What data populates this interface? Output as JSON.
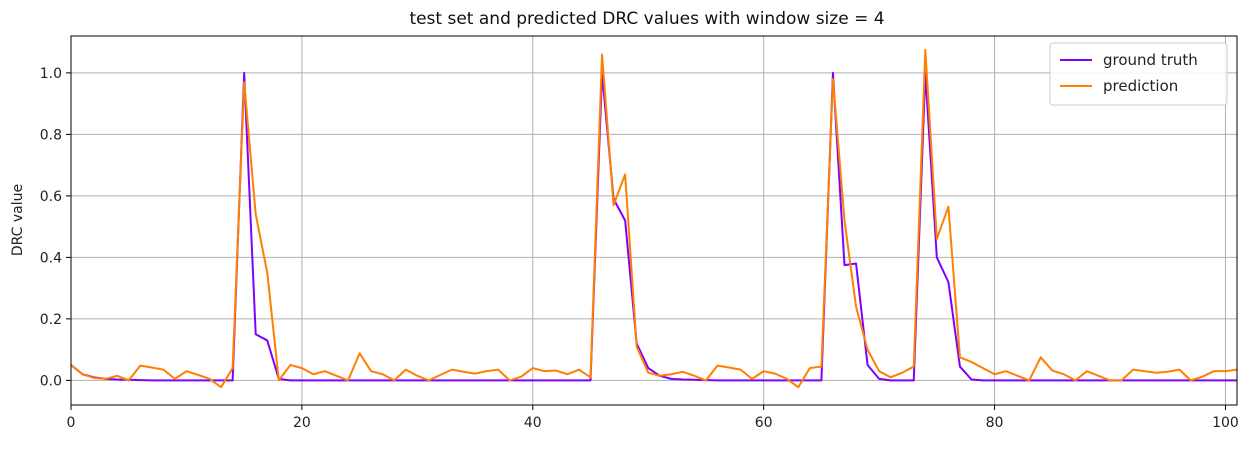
{
  "chart_data": {
    "type": "line",
    "title": "test set and predicted DRC values with window size = 4",
    "xlabel": "",
    "ylabel": "DRC value",
    "xlim": [
      0,
      101
    ],
    "ylim": [
      -0.08,
      1.12
    ],
    "xticks": [
      0,
      20,
      40,
      60,
      80,
      100
    ],
    "yticks": [
      0.0,
      0.2,
      0.4,
      0.6,
      0.8,
      1.0
    ],
    "xtick_labels": [
      "0",
      "20",
      "40",
      "60",
      "80",
      "100"
    ],
    "ytick_labels": [
      "0.0",
      "0.2",
      "0.4",
      "0.6",
      "0.8",
      "1.0"
    ],
    "grid": true,
    "legend_position": "top-right",
    "series": [
      {
        "name": "ground truth",
        "color": "#8000ff",
        "x": [
          0,
          1,
          2,
          3,
          4,
          5,
          6,
          7,
          8,
          9,
          10,
          11,
          12,
          13,
          14,
          15,
          16,
          17,
          18,
          19,
          20,
          21,
          22,
          23,
          24,
          25,
          26,
          27,
          28,
          29,
          30,
          31,
          32,
          33,
          34,
          35,
          36,
          37,
          38,
          39,
          40,
          41,
          42,
          43,
          44,
          45,
          46,
          47,
          48,
          49,
          50,
          51,
          52,
          53,
          54,
          55,
          56,
          57,
          58,
          59,
          60,
          61,
          62,
          63,
          64,
          65,
          66,
          67,
          68,
          69,
          70,
          71,
          72,
          73,
          74,
          75,
          76,
          77,
          78,
          79,
          80,
          81,
          82,
          83,
          84,
          85,
          86,
          87,
          88,
          89,
          90,
          91,
          92,
          93,
          94,
          95,
          96,
          97,
          98,
          99,
          100,
          101
        ],
        "values": [
          0.05,
          0.02,
          0.01,
          0.005,
          0.003,
          0.002,
          0.001,
          0,
          0,
          0,
          0,
          0,
          0,
          0,
          0,
          1.0,
          0.15,
          0.13,
          0.005,
          0,
          0,
          0,
          0,
          0,
          0,
          0,
          0,
          0,
          0,
          0,
          0,
          0,
          0,
          0,
          0,
          0,
          0,
          0,
          0,
          0,
          0,
          0,
          0,
          0,
          0,
          0,
          1.0,
          0.59,
          0.52,
          0.12,
          0.04,
          0.015,
          0.005,
          0.003,
          0.002,
          0.001,
          0,
          0,
          0,
          0,
          0,
          0,
          0,
          0,
          0,
          0,
          1.0,
          0.375,
          0.38,
          0.05,
          0.005,
          0,
          0,
          0,
          1.0,
          0.4,
          0.32,
          0.045,
          0.003,
          0,
          0,
          0,
          0,
          0,
          0,
          0,
          0,
          0,
          0,
          0,
          0,
          0,
          0,
          0,
          0,
          0,
          0,
          0,
          0,
          0,
          0,
          0
        ]
      },
      {
        "name": "prediction",
        "color": "#ff8000",
        "x": [
          0,
          1,
          2,
          3,
          4,
          5,
          6,
          7,
          8,
          9,
          10,
          11,
          12,
          13,
          14,
          15,
          16,
          17,
          18,
          19,
          20,
          21,
          22,
          23,
          24,
          25,
          26,
          27,
          28,
          29,
          30,
          31,
          32,
          33,
          34,
          35,
          36,
          37,
          38,
          39,
          40,
          41,
          42,
          43,
          44,
          45,
          46,
          47,
          48,
          49,
          50,
          51,
          52,
          53,
          54,
          55,
          56,
          57,
          58,
          59,
          60,
          61,
          62,
          63,
          64,
          65,
          66,
          67,
          68,
          69,
          70,
          71,
          72,
          73,
          74,
          75,
          76,
          77,
          78,
          79,
          80,
          81,
          82,
          83,
          84,
          85,
          86,
          87,
          88,
          89,
          90,
          91,
          92,
          93,
          94,
          95,
          96,
          97,
          98,
          99,
          100,
          101
        ],
        "values": [
          0.05,
          0.02,
          0.008,
          0.005,
          0.015,
          0.0,
          0.048,
          0.042,
          0.035,
          0.005,
          0.03,
          0.018,
          0.005,
          -0.022,
          0.04,
          0.97,
          0.54,
          0.35,
          0.0,
          0.05,
          0.04,
          0.02,
          0.03,
          0.015,
          0.0,
          0.088,
          0.03,
          0.02,
          0.0,
          0.035,
          0.015,
          0.0,
          0.018,
          0.035,
          0.028,
          0.022,
          0.03,
          0.035,
          0.0,
          0.012,
          0.04,
          0.03,
          0.032,
          0.02,
          0.035,
          0.01,
          1.06,
          0.57,
          0.67,
          0.11,
          0.025,
          0.015,
          0.02,
          0.028,
          0.015,
          0.0,
          0.048,
          0.042,
          0.035,
          0.005,
          0.03,
          0.022,
          0.005,
          -0.022,
          0.04,
          0.045,
          0.98,
          0.52,
          0.24,
          0.1,
          0.03,
          0.01,
          0.025,
          0.045,
          1.075,
          0.46,
          0.565,
          0.075,
          0.06,
          0.04,
          0.02,
          0.03,
          0.015,
          0.0,
          0.075,
          0.032,
          0.02,
          0.0,
          0.03,
          0.015,
          0.0,
          0.0,
          0.035,
          0.03,
          0.025,
          0.028,
          0.035,
          0.0,
          0.012,
          0.03,
          0.03,
          0.035
        ]
      }
    ]
  }
}
